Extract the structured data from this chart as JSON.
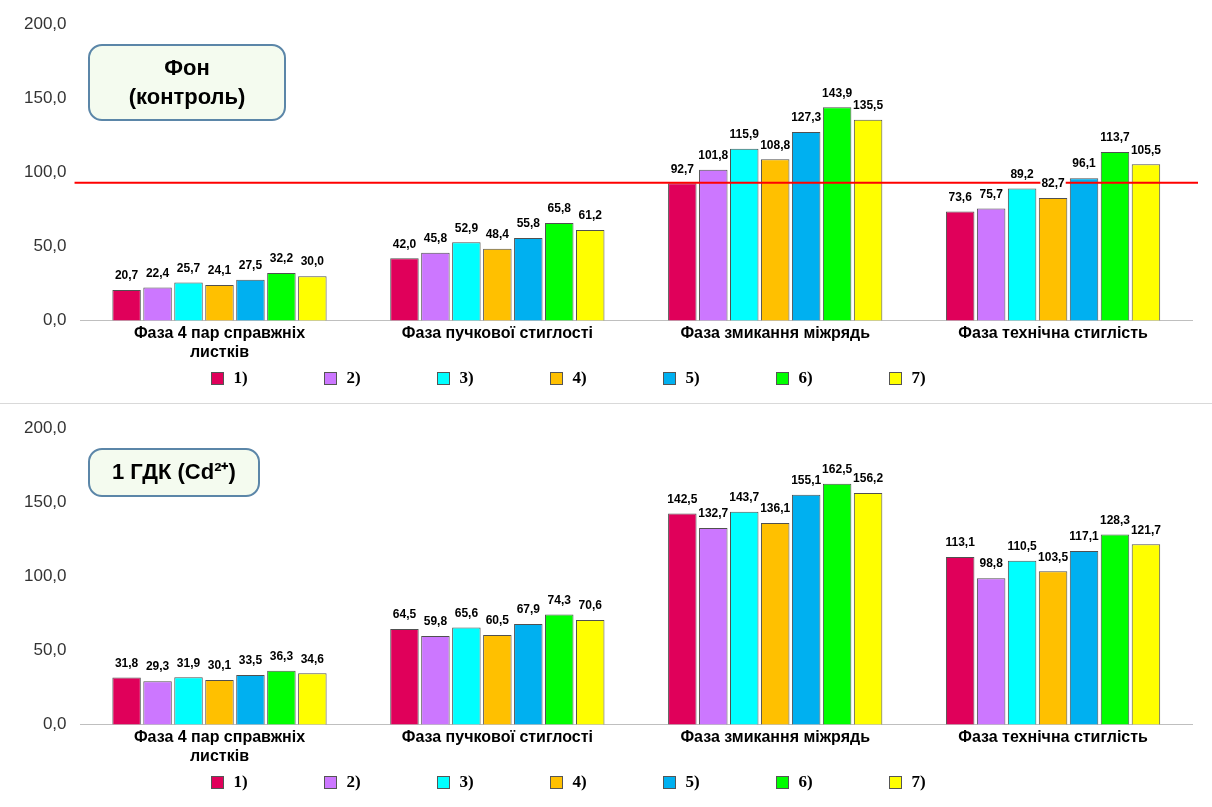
{
  "chart_data": [
    {
      "type": "bar",
      "title": "Фон (контроль)",
      "categories": [
        "Фаза 4 пар справжніх листків",
        "Фаза пучкової стиглості",
        "Фаза змикання міжрядь",
        "Фаза технічна стиглість"
      ],
      "series": [
        {
          "name": "1)",
          "color": "#e0005a",
          "values": [
            20.7,
            42.0,
            92.7,
            73.6
          ],
          "value_labels": [
            "20,7",
            "42,0",
            "92,7",
            "73,6"
          ]
        },
        {
          "name": "2)",
          "color": "#cc77ff",
          "values": [
            22.4,
            45.8,
            101.8,
            75.7
          ],
          "value_labels": [
            "22,4",
            "45,8",
            "101,8",
            "75,7"
          ]
        },
        {
          "name": "3)",
          "color": "#00ffff",
          "values": [
            25.7,
            52.9,
            115.9,
            89.2
          ],
          "value_labels": [
            "25,7",
            "52,9",
            "115,9",
            "89,2"
          ]
        },
        {
          "name": "4)",
          "color": "#ffc000",
          "values": [
            24.1,
            48.4,
            108.8,
            82.7
          ],
          "value_labels": [
            "24,1",
            "48,4",
            "108,8",
            "82,7"
          ]
        },
        {
          "name": "5)",
          "color": "#00b0f0",
          "values": [
            27.5,
            55.8,
            127.3,
            96.1
          ],
          "value_labels": [
            "27,5",
            "55,8",
            "127,3",
            "96,1"
          ]
        },
        {
          "name": "6)",
          "color": "#00ff00",
          "values": [
            32.2,
            65.8,
            143.9,
            113.7
          ],
          "value_labels": [
            "32,2",
            "65,8",
            "143,9",
            "113,7"
          ]
        },
        {
          "name": "7)",
          "color": "#ffff00",
          "values": [
            30.0,
            61.2,
            135.5,
            105.5
          ],
          "value_labels": [
            "30,0",
            "61,2",
            "135,5",
            "105,5"
          ]
        }
      ],
      "ylim": [
        0,
        200
      ],
      "yticks": [
        {
          "value": 0,
          "label": "0,0"
        },
        {
          "value": 50,
          "label": "50,0"
        },
        {
          "value": 100,
          "label": "100,0"
        },
        {
          "value": 150,
          "label": "150,0"
        },
        {
          "value": 200,
          "label": "200,0"
        }
      ],
      "grid": false,
      "legend": "bottom",
      "marker": "square",
      "ref_lines": [
        {
          "axis": "y",
          "value": 93,
          "color": "#ff0000"
        }
      ]
    },
    {
      "type": "bar",
      "title": "1 ГДК (Cd²⁺)",
      "categories": [
        "Фаза 4 пар справжніх листків",
        "Фаза пучкової стиглості",
        "Фаза змикання міжрядь",
        "Фаза технічна стиглість"
      ],
      "series": [
        {
          "name": "1)",
          "color": "#e0005a",
          "values": [
            31.8,
            64.5,
            142.5,
            113.1
          ],
          "value_labels": [
            "31,8",
            "64,5",
            "142,5",
            "113,1"
          ]
        },
        {
          "name": "2)",
          "color": "#cc77ff",
          "values": [
            29.3,
            59.8,
            132.7,
            98.8
          ],
          "value_labels": [
            "29,3",
            "59,8",
            "132,7",
            "98,8"
          ]
        },
        {
          "name": "3)",
          "color": "#00ffff",
          "values": [
            31.9,
            65.6,
            143.7,
            110.5
          ],
          "value_labels": [
            "31,9",
            "65,6",
            "143,7",
            "110,5"
          ]
        },
        {
          "name": "4)",
          "color": "#ffc000",
          "values": [
            30.1,
            60.5,
            136.1,
            103.5
          ],
          "value_labels": [
            "30,1",
            "60,5",
            "136,1",
            "103,5"
          ]
        },
        {
          "name": "5)",
          "color": "#00b0f0",
          "values": [
            33.5,
            67.9,
            155.1,
            117.1
          ],
          "value_labels": [
            "33,5",
            "67,9",
            "155,1",
            "117,1"
          ]
        },
        {
          "name": "6)",
          "color": "#00ff00",
          "values": [
            36.3,
            74.3,
            162.5,
            128.3
          ],
          "value_labels": [
            "36,3",
            "74,3",
            "162,5",
            "128,3"
          ]
        },
        {
          "name": "7)",
          "color": "#ffff00",
          "values": [
            34.6,
            70.6,
            156.2,
            121.7
          ],
          "value_labels": [
            "34,6",
            "70,6",
            "156,2",
            "121,7"
          ]
        }
      ],
      "ylim": [
        0,
        200
      ],
      "yticks": [
        {
          "value": 0,
          "label": "0,0"
        },
        {
          "value": 50,
          "label": "50,0"
        },
        {
          "value": 100,
          "label": "100,0"
        },
        {
          "value": 150,
          "label": "150,0"
        },
        {
          "value": 200,
          "label": "200,0"
        }
      ],
      "grid": false,
      "legend": "bottom",
      "marker": "square"
    }
  ]
}
